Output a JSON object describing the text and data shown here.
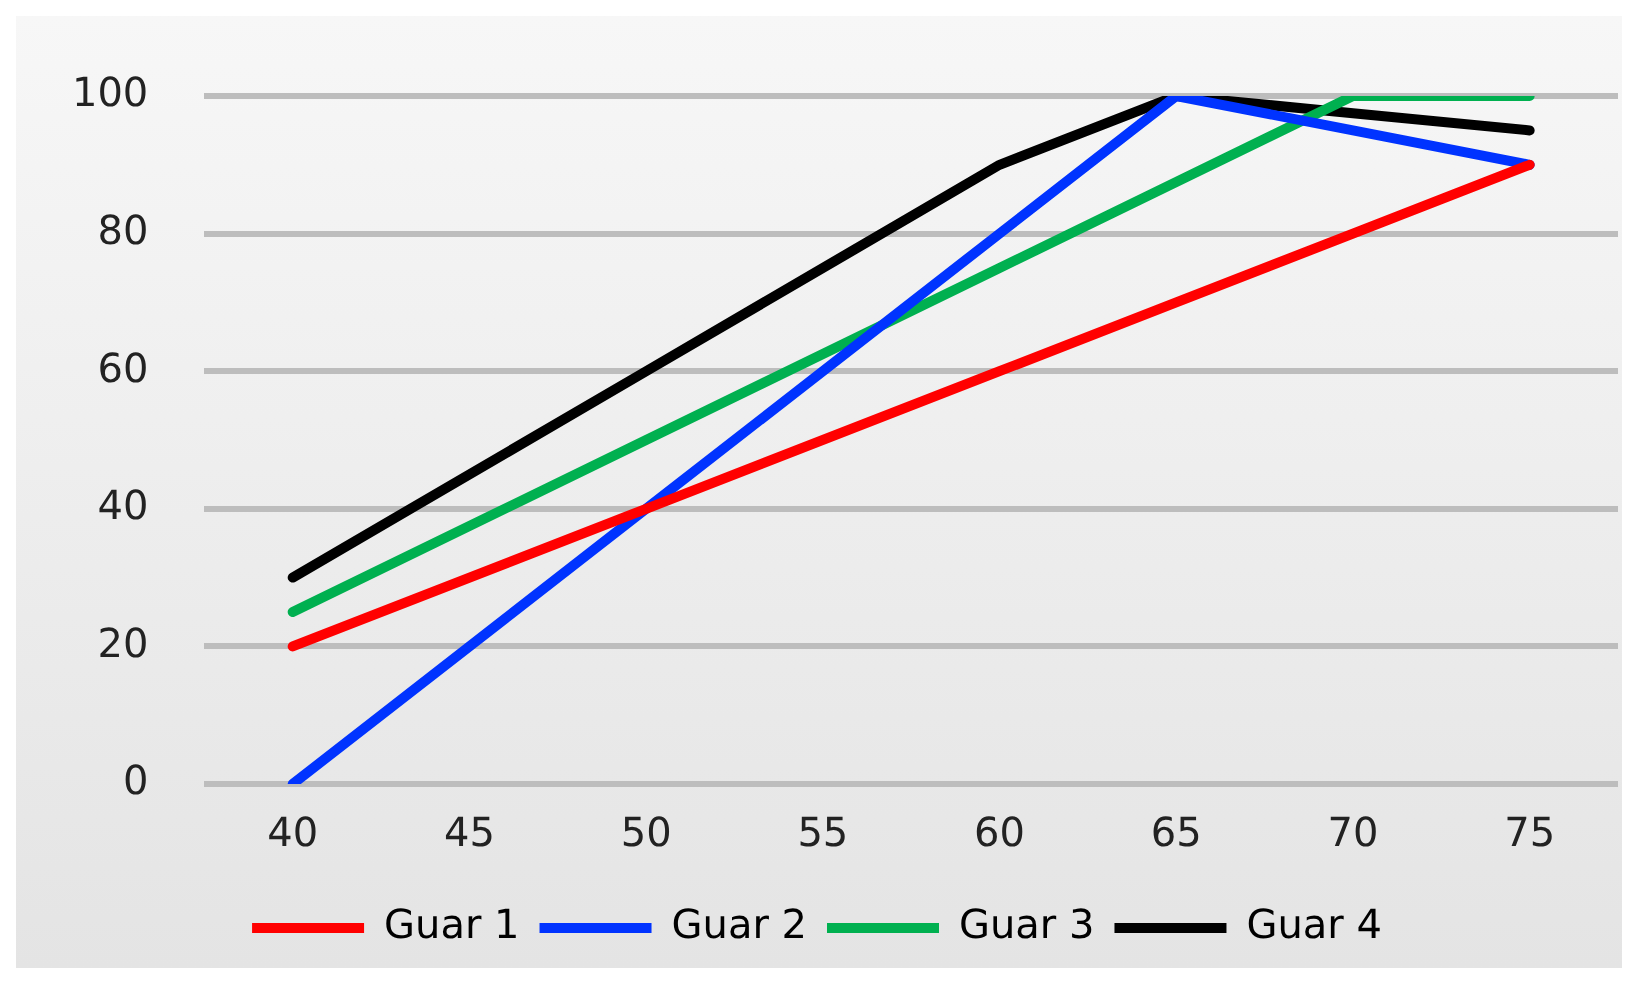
{
  "chart_data": {
    "type": "line",
    "x": [
      40,
      50,
      60,
      65,
      70,
      75
    ],
    "series": [
      {
        "name": "Guar 1",
        "color": "#ff0000",
        "values": [
          20,
          40,
          60,
          70,
          80,
          90
        ]
      },
      {
        "name": "Guar 2",
        "color": "#0033ff",
        "values": [
          0,
          40,
          80,
          100,
          95,
          90
        ]
      },
      {
        "name": "Guar 3",
        "color": "#00b050",
        "values": [
          25,
          50,
          75,
          87.5,
          100,
          100
        ]
      },
      {
        "name": "Guar 4",
        "color": "#000000",
        "values": [
          30,
          60,
          90,
          100,
          97.5,
          95
        ]
      }
    ],
    "xlim": [
      37.5,
      77.5
    ],
    "xticks": [
      40,
      45,
      50,
      55,
      60,
      65,
      70,
      75
    ],
    "ylim": [
      0,
      100
    ],
    "yticks": [
      0,
      20,
      40,
      60,
      80,
      100
    ],
    "grid": "y",
    "legend": "bottom",
    "marker": "none",
    "line_style": "solid"
  }
}
